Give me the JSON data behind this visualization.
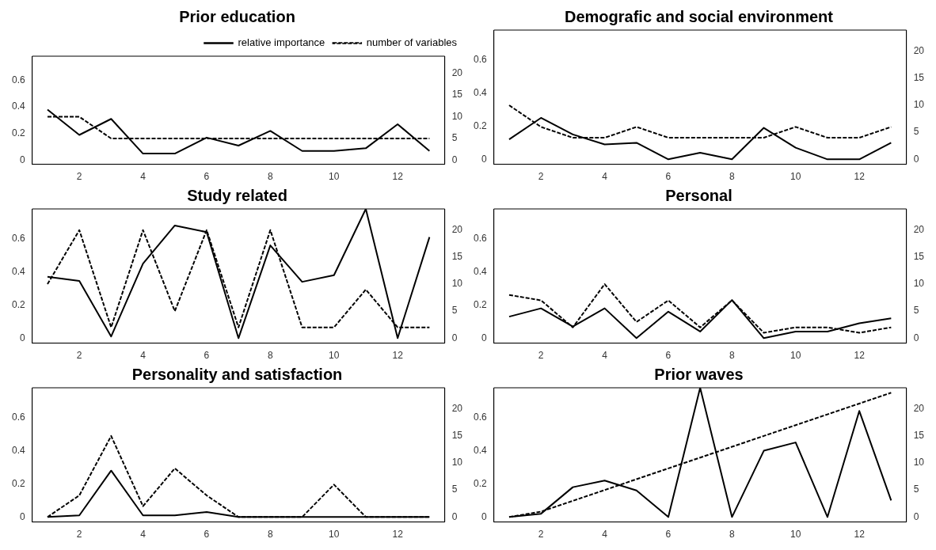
{
  "chart_data": [
    {
      "type": "line",
      "title": "Prior education",
      "x": [
        1,
        2,
        3,
        4,
        5,
        6,
        7,
        8,
        9,
        10,
        11,
        12,
        13
      ],
      "xlim": [
        0.52,
        13.48
      ],
      "xticks": [
        2,
        4,
        6,
        8,
        10,
        12
      ],
      "ylim": [
        -0.03,
        0.78
      ],
      "yticks": [
        0,
        0.2,
        0.4,
        0.6
      ],
      "y2lim": [
        -0.92,
        23.92
      ],
      "y2ticks": [
        0,
        5,
        10,
        15,
        20
      ],
      "grid": false,
      "marker": "none",
      "legend": "top right",
      "series": [
        {
          "name": "relative importance",
          "color": "#000000",
          "line_style": "solid",
          "values": [
            0.38,
            0.19,
            0.31,
            0.05,
            0.05,
            0.17,
            0.11,
            0.22,
            0.07,
            0.07,
            0.09,
            0.27,
            0.07
          ]
        },
        {
          "name": "number of variables",
          "color": "#000000",
          "line_style": "dashed",
          "axis": "y2",
          "values": [
            10,
            10,
            5,
            5,
            5,
            5,
            5,
            5,
            5,
            5,
            5,
            5,
            5
          ]
        }
      ]
    },
    {
      "type": "line",
      "title": "Demografic and social environment",
      "x": [
        1,
        2,
        3,
        4,
        5,
        6,
        7,
        8,
        9,
        10,
        11,
        12,
        13
      ],
      "xlim": [
        0.52,
        13.48
      ],
      "xticks": [
        2,
        4,
        6,
        8,
        10,
        12
      ],
      "ylim": [
        -0.03,
        0.78
      ],
      "yticks": [
        0,
        0.2,
        0.4,
        0.6
      ],
      "y2lim": [
        -0.92,
        23.92
      ],
      "y2ticks": [
        0,
        5,
        10,
        15,
        20
      ],
      "grid": false,
      "marker": "none",
      "legend": false,
      "series": [
        {
          "color": "#000000",
          "line_style": "solid",
          "values": [
            0.12,
            0.25,
            0.15,
            0.09,
            0.1,
            0,
            0.04,
            0,
            0.19,
            0.07,
            0,
            0,
            0.1
          ]
        },
        {
          "color": "#000000",
          "line_style": "dashed",
          "axis": "y2",
          "values": [
            10,
            6,
            4,
            4,
            6,
            4,
            4,
            4,
            4,
            6,
            4,
            4,
            6
          ]
        }
      ]
    },
    {
      "type": "line",
      "title": "Study related",
      "x": [
        1,
        2,
        3,
        4,
        5,
        6,
        7,
        8,
        9,
        10,
        11,
        12,
        13
      ],
      "xlim": [
        0.52,
        13.48
      ],
      "xticks": [
        2,
        4,
        6,
        8,
        10,
        12
      ],
      "ylim": [
        -0.03,
        0.78
      ],
      "yticks": [
        0,
        0.2,
        0.4,
        0.6
      ],
      "y2lim": [
        -0.92,
        23.92
      ],
      "y2ticks": [
        0,
        5,
        10,
        15,
        20
      ],
      "grid": false,
      "marker": "none",
      "legend": false,
      "series": [
        {
          "color": "#000000",
          "line_style": "solid",
          "values": [
            0.37,
            0.345,
            0.01,
            0.45,
            0.68,
            0.64,
            0,
            0.56,
            0.34,
            0.38,
            0.78,
            0,
            0.61
          ]
        },
        {
          "color": "#000000",
          "line_style": "dashed",
          "axis": "y2",
          "values": [
            10,
            20,
            2,
            20,
            5,
            20,
            2,
            20,
            2,
            2,
            9,
            2,
            2
          ]
        }
      ]
    },
    {
      "type": "line",
      "title": "Personal",
      "x": [
        1,
        2,
        3,
        4,
        5,
        6,
        7,
        8,
        9,
        10,
        11,
        12,
        13
      ],
      "xlim": [
        0.52,
        13.48
      ],
      "xticks": [
        2,
        4,
        6,
        8,
        10,
        12
      ],
      "ylim": [
        -0.03,
        0.78
      ],
      "yticks": [
        0,
        0.2,
        0.4,
        0.6
      ],
      "y2lim": [
        -0.92,
        23.92
      ],
      "y2ticks": [
        0,
        5,
        10,
        15,
        20
      ],
      "grid": false,
      "marker": "none",
      "legend": false,
      "series": [
        {
          "color": "#000000",
          "line_style": "solid",
          "values": [
            0.13,
            0.18,
            0.07,
            0.18,
            0,
            0.16,
            0.04,
            0.23,
            0,
            0.04,
            0.04,
            0.09,
            0.12
          ]
        },
        {
          "color": "#000000",
          "line_style": "dashed",
          "axis": "y2",
          "values": [
            8,
            7,
            2,
            10,
            3,
            7,
            2,
            7,
            1,
            2,
            2,
            1,
            2
          ]
        }
      ]
    },
    {
      "type": "line",
      "title": "Personality and satisfaction",
      "x": [
        1,
        2,
        3,
        4,
        5,
        6,
        7,
        8,
        9,
        10,
        11,
        12,
        13
      ],
      "xlim": [
        0.52,
        13.48
      ],
      "xticks": [
        2,
        4,
        6,
        8,
        10,
        12
      ],
      "ylim": [
        -0.03,
        0.78
      ],
      "yticks": [
        0,
        0.2,
        0.4,
        0.6
      ],
      "y2lim": [
        -0.92,
        23.92
      ],
      "y2ticks": [
        0,
        5,
        10,
        15,
        20
      ],
      "grid": false,
      "marker": "none",
      "legend": false,
      "series": [
        {
          "color": "#000000",
          "line_style": "solid",
          "values": [
            0,
            0.01,
            0.28,
            0.01,
            0.01,
            0.03,
            0,
            0,
            0,
            0,
            0,
            0,
            0
          ]
        },
        {
          "color": "#000000",
          "line_style": "dashed",
          "axis": "y2",
          "values": [
            0,
            4,
            15,
            2,
            9,
            4,
            0,
            0,
            0,
            6,
            0,
            0,
            0
          ]
        }
      ]
    },
    {
      "type": "line",
      "title": "Prior waves",
      "x": [
        1,
        2,
        3,
        4,
        5,
        6,
        7,
        8,
        9,
        10,
        11,
        12,
        13
      ],
      "xlim": [
        0.52,
        13.48
      ],
      "xticks": [
        2,
        4,
        6,
        8,
        10,
        12
      ],
      "ylim": [
        -0.03,
        0.78
      ],
      "yticks": [
        0,
        0.2,
        0.4,
        0.6
      ],
      "y2lim": [
        -0.92,
        23.92
      ],
      "y2ticks": [
        0,
        5,
        10,
        15,
        20
      ],
      "grid": false,
      "marker": "none",
      "legend": false,
      "series": [
        {
          "color": "#000000",
          "line_style": "solid",
          "values": [
            0,
            0.02,
            0.18,
            0.22,
            0.16,
            0,
            0.78,
            0,
            0.4,
            0.45,
            0,
            0.64,
            0.1
          ]
        },
        {
          "color": "#000000",
          "line_style": "dashed",
          "axis": "y2",
          "values": [
            0,
            1,
            3,
            5,
            7,
            9,
            11,
            13,
            15,
            17,
            19,
            21,
            23
          ]
        }
      ]
    }
  ]
}
